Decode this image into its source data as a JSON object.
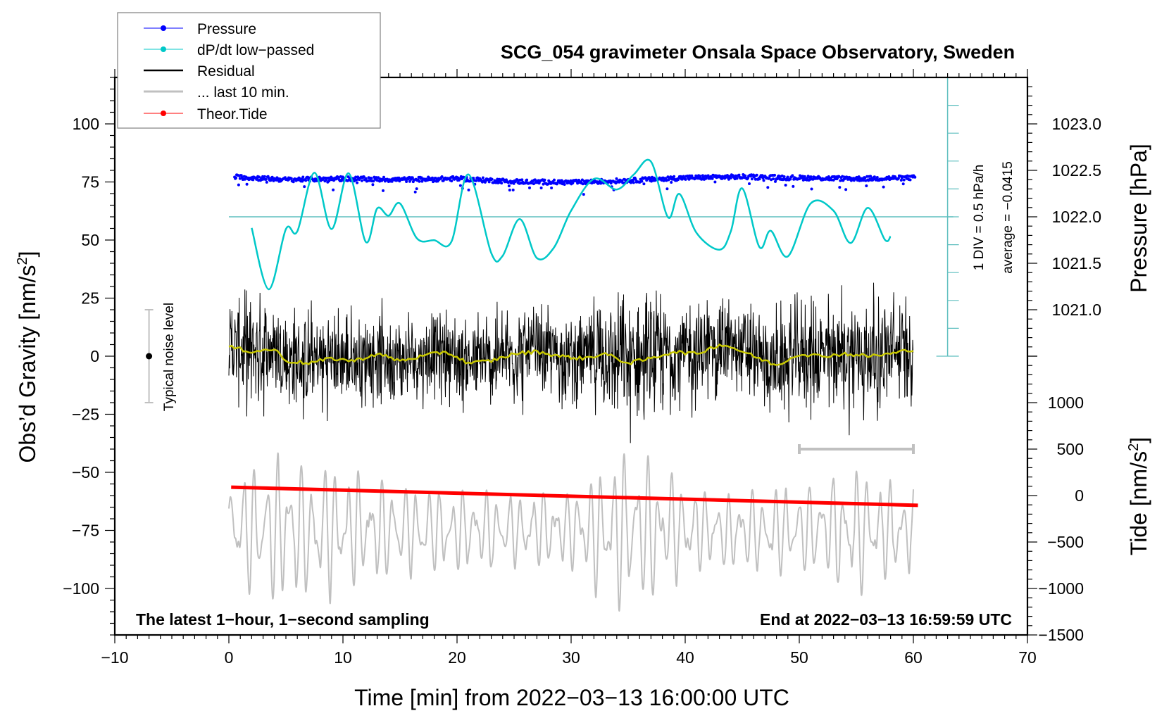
{
  "chart_data": {
    "type": "line",
    "title": "SCG_054 gravimeter Onsala Space Observatory, Sweden",
    "xlabel": "Time [min] from 2022−03−13 16:00:00 UTC",
    "ylabel_left": "Obs’d Gravity [nm/s²]",
    "ylabel_left_main": "Obs’d Gravity [nm/s",
    "ylabel_right_pressure": "Pressure [hPa]",
    "ylabel_right_tide_main": "Tide [nm/s",
    "ylabel_unit_sup": "2",
    "ylabel_unit_close": "]",
    "xlim": [
      -10,
      70
    ],
    "ylim_left": [
      -120,
      120
    ],
    "xticks": [
      -10,
      0,
      10,
      20,
      30,
      40,
      50,
      60,
      70
    ],
    "xtick_labels": [
      "−10",
      "0",
      "10",
      "20",
      "30",
      "40",
      "50",
      "60",
      "70"
    ],
    "yticks_left": [
      100,
      75,
      50,
      25,
      0,
      -25,
      -50,
      -75,
      -100
    ],
    "ytick_labels_left": [
      "100",
      "75",
      "50",
      "25",
      "0",
      "−25",
      "−50",
      "−75",
      "−100"
    ],
    "pressure_axis": {
      "ticks": [
        1023.0,
        1022.5,
        1022.0,
        1021.5,
        1021.0
      ],
      "tick_labels": [
        "1023.0",
        "1022.5",
        "1022.0",
        "1021.5",
        "1021.0"
      ],
      "reference": {
        "value": 1022.0,
        "gravity_equiv": 60
      },
      "nm_s2_per_hPa": 40
    },
    "tide_axis": {
      "ticks": [
        1000,
        500,
        0,
        -500,
        -1000,
        -1500
      ],
      "tick_labels": [
        "1000",
        "500",
        "0",
        "−500",
        "−1000",
        "−1500"
      ],
      "reference": {
        "value": 0,
        "gravity_equiv": -60
      },
      "nm_s2_per_unit": 0.04
    },
    "dpdt_scale": {
      "label": "1 DIV = 0.5 hPa/h",
      "average_label": "average = −0.0415",
      "hPa_per_h_per_div": 0.5,
      "divisions_each_side": 5,
      "x_position_min": 63,
      "zero_gravity_equiv": 60
    },
    "noise_level": {
      "label": "Typical noise level",
      "x_min": -7,
      "center": 0,
      "half_range": 20
    },
    "last10_bar": {
      "x_start": 50,
      "x_end": 60,
      "y": -40
    },
    "annotations": {
      "bottom_left": "The latest 1−hour, 1−second sampling",
      "bottom_right": "End at 2022−03−13 16:59:59 UTC"
    },
    "legend": {
      "position": "top-left",
      "entries": [
        {
          "label": "Pressure",
          "color": "#0000ff",
          "style": "line-dot"
        },
        {
          "label": "dP/dt low−passed",
          "color": "#00c8c8",
          "style": "line-dot"
        },
        {
          "label": "Residual",
          "color": "#000000",
          "style": "thick-line"
        },
        {
          "label": "... last 10 min.",
          "color": "#c0c0c0",
          "style": "thick-line"
        },
        {
          "label": "Theor.Tide",
          "color": "#ff0000",
          "style": "line-dot"
        }
      ]
    },
    "series": [
      {
        "name": "Pressure",
        "unit": "hPa",
        "color": "#0000ff",
        "x": [
          0.5,
          5,
          10,
          15,
          20,
          25,
          30,
          35,
          40,
          45,
          50,
          55,
          60
        ],
        "values": [
          1022.43,
          1022.4,
          1022.41,
          1022.4,
          1022.41,
          1022.38,
          1022.37,
          1022.39,
          1022.42,
          1022.43,
          1022.42,
          1022.41,
          1022.42
        ]
      },
      {
        "name": "dP/dt low−passed",
        "unit": "hPa/h",
        "color": "#00c8c8",
        "x": [
          2,
          3.5,
          5,
          6,
          7.5,
          9,
          10.5,
          12,
          13,
          14,
          15,
          16.5,
          18,
          19.5,
          21,
          23,
          24,
          25.5,
          27,
          28.5,
          30,
          32,
          34,
          35.5,
          37,
          38.5,
          39.5,
          41,
          43,
          44,
          45,
          46.5,
          47.5,
          49,
          51,
          53,
          54.5,
          56,
          57.5,
          58
        ],
        "values": [
          -0.2,
          -1.3,
          -0.22,
          -0.26,
          0.79,
          -0.22,
          0.78,
          -0.45,
          0.15,
          0.02,
          0.24,
          -0.39,
          -0.42,
          -0.45,
          0.76,
          -0.65,
          -0.7,
          -0.04,
          -0.74,
          -0.55,
          0.11,
          0.68,
          0.49,
          0.76,
          0.99,
          -0.01,
          0.41,
          -0.29,
          -0.59,
          -0.26,
          0.51,
          -0.54,
          -0.25,
          -0.71,
          0.24,
          0.11,
          -0.47,
          0.16,
          -0.41,
          -0.35
        ]
      },
      {
        "name": "Residual (low−passed)",
        "unit": "nm/s²",
        "color": "#c8c800",
        "x": [
          0,
          2,
          4,
          5,
          7,
          9,
          11,
          13,
          15,
          17,
          19,
          21,
          23,
          25,
          27,
          29,
          31,
          33,
          35,
          37,
          39,
          41,
          43,
          44,
          46,
          48,
          50,
          52,
          54,
          56,
          58,
          60
        ],
        "values": [
          4,
          2,
          3,
          -2,
          -3,
          -1,
          -2,
          1,
          -2,
          0,
          2,
          -3,
          -2,
          1,
          2,
          0,
          -1,
          1,
          -3,
          -1,
          2,
          1,
          5,
          4,
          0,
          -4,
          1,
          0,
          1,
          0,
          1,
          3
        ]
      },
      {
        "name": "Residual",
        "unit": "nm/s²",
        "color": "#000000",
        "x": [
          0,
          5,
          10,
          15,
          20,
          25,
          30,
          35,
          40,
          45,
          50,
          55,
          60
        ],
        "envelope_peak": [
          30,
          32,
          28,
          25,
          26,
          30,
          24,
          38,
          33,
          28,
          32,
          38,
          30
        ]
      },
      {
        "name": "... last 10 min.",
        "unit": "nm/s²",
        "color": "#c0c0c0",
        "x": [
          0,
          5,
          10,
          15,
          20,
          25,
          30,
          35,
          40,
          45,
          50,
          55,
          60
        ],
        "envelope_peak": [
          25,
          35,
          30,
          22,
          20,
          18,
          20,
          40,
          22,
          18,
          22,
          30,
          20
        ],
        "center": -75
      },
      {
        "name": "Theor.Tide",
        "unit": "nm/s²",
        "color": "#ff0000",
        "x": [
          0.2,
          60.4
        ],
        "values": [
          90,
          -105
        ]
      }
    ]
  }
}
